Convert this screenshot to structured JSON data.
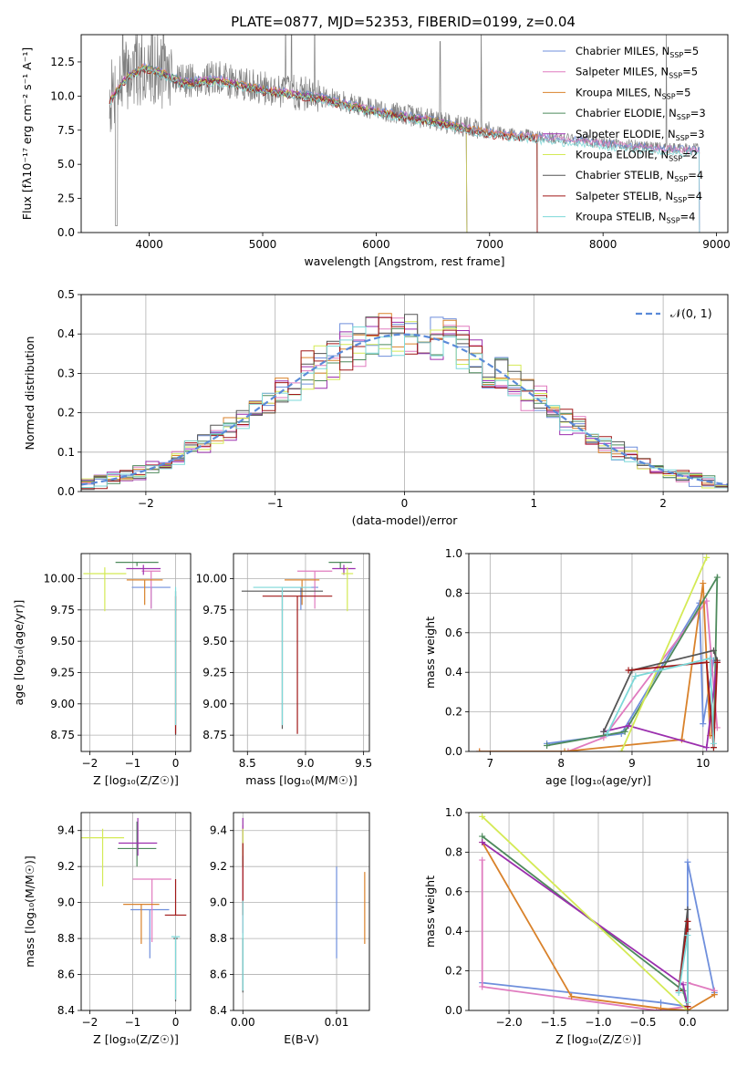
{
  "figure": {
    "title": "PLATE=0877, MJD=52353, FIBERID=0199, z=0.04"
  },
  "models": [
    {
      "name": "Chabrier MILES",
      "nssp": "5",
      "color": "#6f8fdc"
    },
    {
      "name": "Salpeter MILES",
      "nssp": "5",
      "color": "#e07bbf"
    },
    {
      "name": "Kroupa MILES",
      "nssp": "5",
      "color": "#d9822b"
    },
    {
      "name": "Chabrier ELODIE",
      "nssp": "3",
      "color": "#4e8a5c"
    },
    {
      "name": "Salpeter ELODIE",
      "nssp": "3",
      "color": "#9b2fae"
    },
    {
      "name": "Kroupa ELODIE",
      "nssp": "2",
      "color": "#d4ea55"
    },
    {
      "name": "Chabrier STELIB",
      "nssp": "4",
      "color": "#555555"
    },
    {
      "name": "Salpeter STELIB",
      "nssp": "4",
      "color": "#a01818"
    },
    {
      "name": "Kroupa STELIB",
      "nssp": "4",
      "color": "#7dd8d8"
    }
  ],
  "chart_data": [
    {
      "id": "spectrum",
      "type": "line",
      "xlabel": "wavelength [Angstrom, rest frame]",
      "ylabel": "Flux [fλ10⁻¹⁷ erg cm⁻² s⁻¹ A⁻¹]",
      "xlim": [
        3400,
        9100
      ],
      "ylim": [
        0,
        14.5
      ],
      "xticks": [
        4000,
        5000,
        6000,
        7000,
        8000,
        9000
      ],
      "yticks": [
        0.0,
        2.5,
        5.0,
        7.5,
        10.0,
        12.5
      ],
      "data_color": "#808080",
      "data_range": [
        3650,
        8850
      ],
      "continuum": [
        [
          3650,
          9.8
        ],
        [
          3800,
          11.5
        ],
        [
          3950,
          12.2
        ],
        [
          4100,
          11.9
        ],
        [
          4300,
          11.1
        ],
        [
          4600,
          11.3
        ],
        [
          5000,
          10.6
        ],
        [
          5500,
          10.0
        ],
        [
          6000,
          9.0
        ],
        [
          6500,
          8.3
        ],
        [
          7000,
          7.4
        ],
        [
          7500,
          7.0
        ],
        [
          8000,
          6.6
        ],
        [
          8500,
          6.2
        ],
        [
          8850,
          6.1
        ]
      ],
      "model_ranges": [
        [
          3650,
          8850
        ],
        [
          3650,
          8850
        ],
        [
          3650,
          7420
        ],
        [
          3650,
          6800
        ],
        [
          3650,
          6800
        ],
        [
          3650,
          6800
        ],
        [
          3650,
          7420
        ],
        [
          3650,
          7420
        ],
        [
          3650,
          8850
        ]
      ],
      "legend_position": "upper-right"
    },
    {
      "id": "residuals",
      "type": "step",
      "xlabel": "(data-model)/error",
      "ylabel": "Normed distribution",
      "xlim": [
        -2.5,
        2.5
      ],
      "ylim": [
        0,
        0.5
      ],
      "xticks": [
        -2,
        -1,
        0,
        1,
        2
      ],
      "yticks": [
        0.0,
        0.1,
        0.2,
        0.3,
        0.4,
        0.5
      ],
      "bins": 50,
      "gaussian_label": "𝒩(0, 1)",
      "gaussian_color": "#5a8ad8",
      "grid": true
    },
    {
      "id": "age-vs-Z",
      "type": "errorbar",
      "xlabel": "Z [log₁₀(Z/Z☉)]",
      "ylabel": "age  [log₁₀(age/yr)]",
      "xlim": [
        -2.2,
        0.35
      ],
      "ylim": [
        8.62,
        10.2
      ],
      "xticks": [
        -2,
        -1,
        0
      ],
      "yticks": [
        8.75,
        9.0,
        9.25,
        9.5,
        9.75,
        10.0
      ],
      "points": [
        {
          "x": -0.57,
          "y": 9.93,
          "xerr": 0.45,
          "yerr": [
            0.17,
            0.0
          ]
        },
        {
          "x": -0.57,
          "y": 10.06,
          "xerr": 0.22,
          "yerr": [
            0.3,
            0.0
          ]
        },
        {
          "x": -0.72,
          "y": 9.99,
          "xerr": 0.42,
          "yerr": [
            0.2,
            0.0
          ]
        },
        {
          "x": -0.9,
          "y": 10.13,
          "xerr": 0.5,
          "yerr": [
            0.03,
            0.0
          ]
        },
        {
          "x": -0.75,
          "y": 10.08,
          "xerr": 0.4,
          "yerr": [
            0.05,
            0.03
          ]
        },
        {
          "x": -1.65,
          "y": 10.04,
          "xerr": 0.5,
          "yerr": [
            0.3,
            0.05
          ]
        },
        {
          "x": 0.0,
          "y": 9.9,
          "xerr": 0.01,
          "yerr": [
            1.15,
            0.0
          ]
        },
        {
          "x": 0.0,
          "y": 9.86,
          "xerr": 0.01,
          "yerr": [
            1.1,
            0.0
          ]
        },
        {
          "x": 0.0,
          "y": 9.93,
          "xerr": 0.01,
          "yerr": [
            1.1,
            0.0
          ]
        }
      ],
      "grid": true
    },
    {
      "id": "age-vs-mass",
      "type": "errorbar",
      "xlabel": "mass [log₁₀(M/M☉)]",
      "ylabel": "",
      "xlim": [
        8.38,
        9.55
      ],
      "ylim": [
        8.62,
        10.2
      ],
      "xticks": [
        8.5,
        9.0,
        9.5
      ],
      "yticks": [
        8.75,
        9.0,
        9.25,
        9.5,
        9.75,
        10.0
      ],
      "points": [
        {
          "x": 8.96,
          "y": 9.93,
          "xerr": 0.15,
          "yerr": [
            0.18,
            0.0
          ]
        },
        {
          "x": 9.08,
          "y": 10.06,
          "xerr": 0.15,
          "yerr": [
            0.3,
            0.0
          ]
        },
        {
          "x": 8.97,
          "y": 9.99,
          "xerr": 0.15,
          "yerr": [
            0.2,
            0.0
          ]
        },
        {
          "x": 9.3,
          "y": 10.13,
          "xerr": 0.1,
          "yerr": [
            0.05,
            0.0
          ]
        },
        {
          "x": 9.33,
          "y": 10.08,
          "xerr": 0.1,
          "yerr": [
            0.05,
            0.03
          ]
        },
        {
          "x": 9.36,
          "y": 10.04,
          "xerr": 0.05,
          "yerr": [
            0.3,
            0.05
          ]
        },
        {
          "x": 8.8,
          "y": 9.9,
          "xerr": 0.35,
          "yerr": [
            1.1,
            0.0
          ]
        },
        {
          "x": 8.93,
          "y": 9.86,
          "xerr": 0.3,
          "yerr": [
            1.1,
            0.0
          ]
        },
        {
          "x": 8.8,
          "y": 9.93,
          "xerr": 0.25,
          "yerr": [
            1.1,
            0.0
          ]
        }
      ],
      "grid": true
    },
    {
      "id": "weight-vs-age",
      "type": "line",
      "xlabel": "age  [log₁₀(age/yr)]",
      "ylabel": "mass weight",
      "xlim": [
        6.7,
        10.35
      ],
      "ylim": [
        0,
        1.0
      ],
      "xticks": [
        7,
        8,
        9,
        10
      ],
      "yticks": [
        0.0,
        0.2,
        0.4,
        0.6,
        0.8,
        1.0
      ],
      "series": [
        {
          "x": [
            7.8,
            8.85,
            9.95,
            10.0,
            10.15
          ],
          "y": [
            0.04,
            0.09,
            0.75,
            0.14,
            0.46
          ]
        },
        {
          "x": [
            6.85,
            8.1,
            8.6,
            10.05,
            10.2
          ],
          "y": [
            0.0,
            0.0,
            0.07,
            0.76,
            0.12
          ]
        },
        {
          "x": [
            6.85,
            8.05,
            9.7,
            10.0,
            10.1
          ],
          "y": [
            0.0,
            0.0,
            0.06,
            0.85,
            0.08
          ]
        },
        {
          "x": [
            7.8,
            8.9,
            10.2,
            10.15
          ],
          "y": [
            0.03,
            0.1,
            0.88,
            0.02
          ]
        },
        {
          "x": [
            8.6,
            8.95,
            10.05,
            10.2
          ],
          "y": [
            0.1,
            0.13,
            0.02,
            0.45
          ]
        },
        {
          "x": [
            8.85,
            10.05
          ],
          "y": [
            0.0,
            0.98
          ]
        },
        {
          "x": [
            8.6,
            9.0,
            10.15,
            10.2
          ],
          "y": [
            0.1,
            0.41,
            0.51,
            0.46
          ]
        },
        {
          "x": [
            8.95,
            10.05,
            10.15,
            10.2
          ],
          "y": [
            0.41,
            0.45,
            0.02,
            0.45
          ]
        },
        {
          "x": [
            8.65,
            9.05,
            10.1,
            10.15
          ],
          "y": [
            0.09,
            0.38,
            0.47,
            0.04
          ]
        }
      ],
      "grid": true
    },
    {
      "id": "mass-vs-Z",
      "type": "errorbar",
      "xlabel": "Z [log₁₀(Z/Z☉)]",
      "ylabel": "mass [log₁₀(M/M☉)]",
      "xlim": [
        -2.2,
        0.35
      ],
      "ylim": [
        8.4,
        9.5
      ],
      "xticks": [
        -2,
        -1,
        0
      ],
      "yticks": [
        8.4,
        8.6,
        8.8,
        9.0,
        9.2,
        9.4
      ],
      "points": [
        {
          "x": -0.6,
          "y": 8.96,
          "xerr": 0.45,
          "yerr": [
            0.27,
            0.0
          ]
        },
        {
          "x": -0.55,
          "y": 9.13,
          "xerr": 0.45,
          "yerr": [
            0.35,
            0.0
          ]
        },
        {
          "x": -0.8,
          "y": 8.99,
          "xerr": 0.42,
          "yerr": [
            0.22,
            0.0
          ]
        },
        {
          "x": -0.9,
          "y": 9.3,
          "xerr": 0.45,
          "yerr": [
            0.1,
            0.15
          ]
        },
        {
          "x": -0.88,
          "y": 9.33,
          "xerr": 0.45,
          "yerr": [
            0.07,
            0.14
          ]
        },
        {
          "x": -1.7,
          "y": 9.36,
          "xerr": 0.5,
          "yerr": [
            0.27,
            0.05
          ]
        },
        {
          "x": 0.0,
          "y": 8.8,
          "xerr": 0.05,
          "yerr": [
            0.35,
            0.0
          ]
        },
        {
          "x": 0.0,
          "y": 8.93,
          "xerr": 0.25,
          "yerr": [
            0.0,
            0.2
          ]
        },
        {
          "x": 0.0,
          "y": 8.81,
          "xerr": 0.1,
          "yerr": [
            0.35,
            0.0
          ]
        }
      ],
      "grid": true
    },
    {
      "id": "mass-vs-ebv",
      "type": "errorbar",
      "xlabel": "E(B-V)",
      "ylabel": "",
      "xlim": [
        -0.001,
        0.0135
      ],
      "ylim": [
        8.4,
        9.5
      ],
      "xticks": [
        0.0,
        0.01
      ],
      "xticklabels": [
        "0.00",
        "0.01"
      ],
      "yticks": [
        8.4,
        8.6,
        8.8,
        9.0,
        9.2,
        9.4
      ],
      "points": [
        {
          "x": 0.01,
          "y": 8.96,
          "xerr": 0.0,
          "yerr": [
            0.27,
            0.24
          ]
        },
        {
          "x": 0.0,
          "y": 9.13,
          "xerr": 0.0,
          "yerr": [
            0.3,
            0.3
          ]
        },
        {
          "x": 0.013,
          "y": 8.99,
          "xerr": 0.0,
          "yerr": [
            0.22,
            0.18
          ]
        },
        {
          "x": 0.0,
          "y": 9.3,
          "xerr": 0.0,
          "yerr": [
            0.1,
            0.1
          ]
        },
        {
          "x": 0.0,
          "y": 9.33,
          "xerr": 0.0,
          "yerr": [
            0.07,
            0.14
          ]
        },
        {
          "x": 0.0,
          "y": 9.36,
          "xerr": 0.0,
          "yerr": [
            0.1,
            0.05
          ]
        },
        {
          "x": 0.0,
          "y": 8.8,
          "xerr": 0.0,
          "yerr": [
            0.3,
            0.0
          ]
        },
        {
          "x": 0.0,
          "y": 8.93,
          "xerr": 0.0,
          "yerr": [
            0.0,
            0.4
          ]
        },
        {
          "x": 0.0,
          "y": 8.81,
          "xerr": 0.0,
          "yerr": [
            0.3,
            0.2
          ]
        }
      ],
      "grid": true
    },
    {
      "id": "weight-vs-Z",
      "type": "line",
      "xlabel": "Z [log₁₀(Z/Z☉)]",
      "ylabel": "mass weight",
      "xlim": [
        -2.45,
        0.45
      ],
      "ylim": [
        0,
        1.0
      ],
      "xticks": [
        -2.0,
        -1.5,
        -1.0,
        -0.5,
        0.0
      ],
      "xticklabels": [
        "−2.0",
        "−1.5",
        "−1.0",
        "−0.5",
        "0.0"
      ],
      "yticks": [
        0.0,
        0.2,
        0.4,
        0.6,
        0.8,
        1.0
      ],
      "series": [
        {
          "x": [
            -2.3,
            -0.3,
            0.0,
            0.0,
            0.3
          ],
          "y": [
            0.14,
            0.04,
            0.02,
            0.75,
            0.09
          ]
        },
        {
          "x": [
            -2.3,
            -2.3,
            -0.35,
            0.0,
            0.0,
            0.3
          ],
          "y": [
            0.76,
            0.12,
            0.0,
            0.02,
            0.14,
            0.1
          ]
        },
        {
          "x": [
            -2.3,
            -1.3,
            -0.3,
            0.0,
            0.3
          ],
          "y": [
            0.85,
            0.07,
            0.01,
            0.0,
            0.08
          ]
        },
        {
          "x": [
            -2.3,
            -0.05,
            0.0
          ],
          "y": [
            0.88,
            0.1,
            0.02
          ]
        },
        {
          "x": [
            -2.3,
            -0.05,
            0.0
          ],
          "y": [
            0.85,
            0.13,
            0.02
          ]
        },
        {
          "x": [
            -2.3,
            0.0
          ],
          "y": [
            0.98,
            0.0
          ]
        },
        {
          "x": [
            -0.1,
            0.0,
            0.0
          ],
          "y": [
            0.1,
            0.51,
            0.41
          ]
        },
        {
          "x": [
            -0.1,
            0.0,
            0.0
          ],
          "y": [
            0.1,
            0.45,
            0.02
          ]
        },
        {
          "x": [
            -0.1,
            0.0,
            0.0
          ],
          "y": [
            0.09,
            0.38,
            0.04
          ]
        }
      ],
      "grid": true
    }
  ]
}
